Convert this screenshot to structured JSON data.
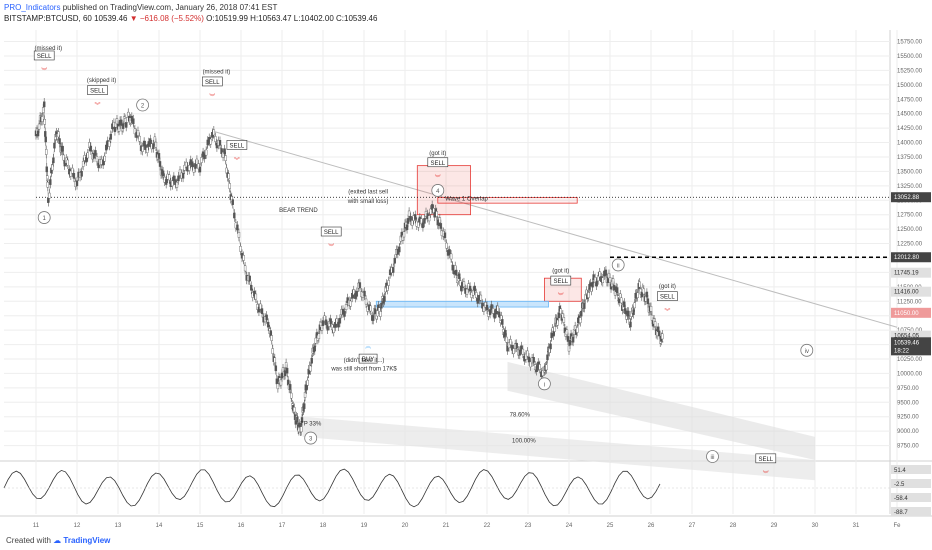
{
  "header": {
    "author": "PRO_Indicators",
    "published": "published on TradingView.com, January 26, 2018 07:41 EST",
    "symbol": "BITSTAMP:BTCUSD, 60",
    "last": "10539.46",
    "change": "−616.08 (−5.52%)",
    "ohlc": "O:10519.99 H:10563.47 L:10402.00 C:10539.46"
  },
  "footer": {
    "created_with": "Created with",
    "brand": "TradingView"
  },
  "colors": {
    "sell": "#e53935",
    "buy": "#64b5f6",
    "candle": "#555555",
    "grid": "#eeeeee",
    "resistance": "#000000"
  },
  "chart_data": {
    "type": "candlestick",
    "symbol": "BITSTAMP:BTCUSD",
    "interval": "60",
    "ylim": [
      8500,
      15950
    ],
    "price_ticks": [
      15750,
      15500,
      15250,
      15000,
      14750,
      14500,
      14250,
      14000,
      13750,
      13500,
      13250,
      13000,
      12750,
      12500,
      12250,
      12000,
      11750,
      11500,
      11250,
      11000,
      10750,
      10500,
      10250,
      10000,
      9750,
      9500,
      9250,
      9000,
      8750
    ],
    "x_ticks": [
      "11",
      "12",
      "13",
      "14",
      "15",
      "16",
      "17",
      "18",
      "19",
      "20",
      "21",
      "22",
      "23",
      "24",
      "25",
      "26",
      "27",
      "28",
      "29",
      "30",
      "31",
      "Fe"
    ],
    "price_path": [
      [
        11.0,
        14100
      ],
      [
        11.2,
        14600
      ],
      [
        11.3,
        13000
      ],
      [
        11.5,
        14200
      ],
      [
        11.7,
        13700
      ],
      [
        12.0,
        13300
      ],
      [
        12.3,
        13900
      ],
      [
        12.6,
        13600
      ],
      [
        12.9,
        14300
      ],
      [
        13.1,
        14300
      ],
      [
        13.3,
        14450
      ],
      [
        13.6,
        13900
      ],
      [
        13.9,
        14000
      ],
      [
        14.1,
        13400
      ],
      [
        14.4,
        13300
      ],
      [
        14.7,
        13600
      ],
      [
        15.0,
        13600
      ],
      [
        15.3,
        14150
      ],
      [
        15.6,
        13800
      ],
      [
        15.8,
        12900
      ],
      [
        16.1,
        11800
      ],
      [
        16.4,
        11200
      ],
      [
        16.7,
        10800
      ],
      [
        16.9,
        9800
      ],
      [
        17.1,
        10100
      ],
      [
        17.3,
        9300
      ],
      [
        17.45,
        9000
      ],
      [
        17.6,
        9800
      ],
      [
        17.8,
        10500
      ],
      [
        18.0,
        10900
      ],
      [
        18.3,
        10800
      ],
      [
        18.6,
        11200
      ],
      [
        18.9,
        11500
      ],
      [
        19.2,
        11000
      ],
      [
        19.4,
        11100
      ],
      [
        19.6,
        11600
      ],
      [
        19.9,
        12300
      ],
      [
        20.1,
        12700
      ],
      [
        20.4,
        12600
      ],
      [
        20.7,
        12850
      ],
      [
        20.9,
        12500
      ],
      [
        21.2,
        11800
      ],
      [
        21.4,
        11500
      ],
      [
        21.7,
        11400
      ],
      [
        22.0,
        11100
      ],
      [
        22.3,
        11050
      ],
      [
        22.5,
        10500
      ],
      [
        22.8,
        10400
      ],
      [
        23.1,
        10200
      ],
      [
        23.4,
        10000
      ],
      [
        23.6,
        10700
      ],
      [
        23.8,
        11100
      ],
      [
        24.0,
        10500
      ],
      [
        24.2,
        10800
      ],
      [
        24.4,
        11300
      ],
      [
        24.6,
        11600
      ],
      [
        24.9,
        11700
      ],
      [
        25.1,
        11500
      ],
      [
        25.3,
        11200
      ],
      [
        25.5,
        10900
      ],
      [
        25.7,
        11500
      ],
      [
        25.9,
        11300
      ],
      [
        26.1,
        10800
      ],
      [
        26.3,
        10539
      ]
    ],
    "price_labels": [
      {
        "text": "13052.88",
        "price": 13052.88,
        "style": "dark"
      },
      {
        "text": "12012.80",
        "price": 12012.8,
        "style": "dark"
      },
      {
        "text": "11745.19",
        "price": 11745.19,
        "style": "light"
      },
      {
        "text": "11416.00",
        "price": 11416.0,
        "style": "light"
      },
      {
        "text": "11050.00",
        "price": 11050.0,
        "style": "red"
      },
      {
        "text": "10654.05",
        "price": 10654.05,
        "style": "light"
      },
      {
        "text": "10539.46",
        "price": 10539.46,
        "style": "dark"
      },
      {
        "text": "18:22",
        "price": 10400,
        "style": "dark"
      }
    ],
    "horizontal_levels": [
      {
        "price": 13052.88,
        "style": "dotted"
      },
      {
        "price": 12012.8,
        "style": "dashed"
      }
    ],
    "annotations": [
      {
        "text": "(missed it)",
        "x": 11.3,
        "price": 15600
      },
      {
        "text": "(skipped it)",
        "x": 12.6,
        "price": 15050
      },
      {
        "text": "(missed it)",
        "x": 15.4,
        "price": 15200
      },
      {
        "text": "(got it)",
        "x": 20.8,
        "price": 13780
      },
      {
        "text": "(exited last sell",
        "x": 19.1,
        "price": 13120
      },
      {
        "text": "with small loss)",
        "x": 19.1,
        "price": 12950
      },
      {
        "text": "Wave 1 Overlap",
        "x": 21.5,
        "price": 13000
      },
      {
        "text": "(got it)",
        "x": 23.8,
        "price": 11750
      },
      {
        "text": "(got it)",
        "x": 26.4,
        "price": 11480
      },
      {
        "text": "(didn't take it...)",
        "x": 19.0,
        "price": 10200
      },
      {
        "text": "was still short from 17K$",
        "x": 19.0,
        "price": 10050
      },
      {
        "text": "BEAR TREND",
        "x": 17.4,
        "price": 12800
      },
      {
        "text": "78.60%",
        "x": 22.8,
        "price": 9250
      },
      {
        "text": "100.00%",
        "x": 22.9,
        "price": 8800
      },
      {
        "text": "TP 33%",
        "x": 17.7,
        "price": 9100
      }
    ],
    "signals": [
      {
        "type": "SELL",
        "x": 11.2,
        "price": 15500
      },
      {
        "type": "SELL",
        "x": 12.5,
        "price": 14900
      },
      {
        "type": "SELL",
        "x": 15.3,
        "price": 15050
      },
      {
        "type": "SELL",
        "x": 15.9,
        "price": 13950
      },
      {
        "type": "SELL",
        "x": 18.2,
        "price": 12450
      },
      {
        "type": "SELL",
        "x": 20.8,
        "price": 13650
      },
      {
        "type": "SELL",
        "x": 23.8,
        "price": 11600
      },
      {
        "type": "SELL",
        "x": 26.4,
        "price": 11330
      },
      {
        "type": "SELL",
        "x": 28.8,
        "price": 8520
      },
      {
        "type": "BUY",
        "x": 19.1,
        "price": 10300
      }
    ],
    "wave_labels": [
      {
        "text": "1",
        "x": 11.2,
        "price": 12700
      },
      {
        "text": "2",
        "x": 13.6,
        "price": 14650
      },
      {
        "text": "3",
        "x": 17.7,
        "price": 8880
      },
      {
        "text": "4",
        "x": 20.8,
        "price": 13170
      },
      {
        "text": "i",
        "x": 23.4,
        "price": 9820
      },
      {
        "text": "ii",
        "x": 25.2,
        "price": 11880
      },
      {
        "text": "iii",
        "x": 27.5,
        "price": 8560
      },
      {
        "text": "iv",
        "x": 29.8,
        "price": 10400
      }
    ],
    "zones": [
      {
        "kind": "sell-box",
        "x0": 20.3,
        "x1": 21.6,
        "p0": 12750,
        "p1": 13600
      },
      {
        "kind": "sell-box",
        "x0": 23.4,
        "x1": 24.3,
        "p0": 11250,
        "p1": 11650
      },
      {
        "kind": "overlap",
        "x0": 20.8,
        "x1": 24.2,
        "p0": 12950,
        "p1": 13050
      },
      {
        "kind": "buy-zone",
        "x0": 19.3,
        "x1": 23.5,
        "p0": 11150,
        "p1": 11250
      }
    ],
    "oscillator": {
      "labels": [
        "51.4",
        "-2.5",
        "-58.4",
        "-88.7"
      ]
    },
    "grid": true,
    "legend": "none"
  }
}
